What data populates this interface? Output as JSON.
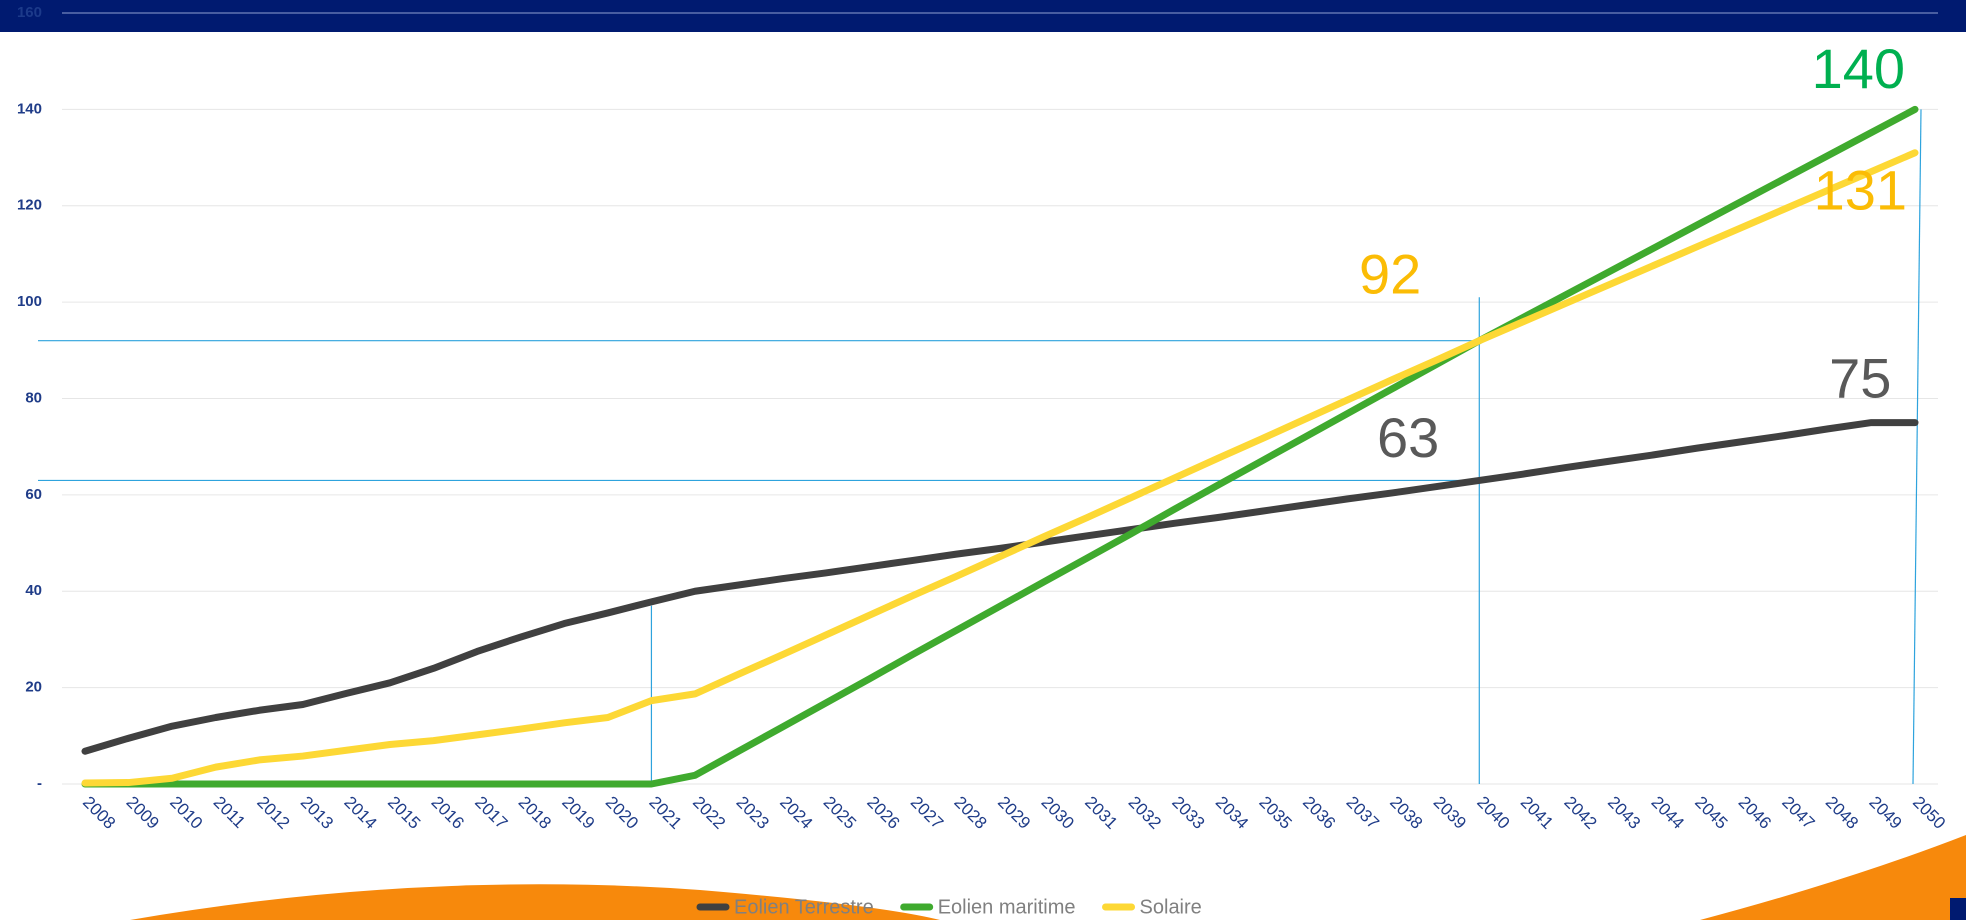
{
  "chart_data": {
    "type": "line",
    "x": [
      "2008",
      "2009",
      "2010",
      "2011",
      "2012",
      "2013",
      "2014",
      "2015",
      "2016",
      "2017",
      "2018",
      "2019",
      "2020",
      "2021",
      "2022",
      "2023",
      "2024",
      "2025",
      "2026",
      "2027",
      "2028",
      "2029",
      "2030",
      "2031",
      "2032",
      "2033",
      "2034",
      "2035",
      "2036",
      "2037",
      "2038",
      "2039",
      "2040",
      "2041",
      "2042",
      "2043",
      "2044",
      "2045",
      "2046",
      "2047",
      "2048",
      "2049",
      "2050"
    ],
    "series": [
      {
        "name": "Eolien Terrestre",
        "color": "#404040",
        "values": [
          6.8,
          9.5,
          12,
          13.8,
          15.3,
          16.5,
          18.8,
          21,
          24,
          27.5,
          30.5,
          33.3,
          35.5,
          37.8,
          40,
          41.3,
          42.6,
          43.8,
          45.1,
          46.4,
          47.7,
          48.9,
          50.2,
          51.5,
          52.8,
          54.1,
          55.3,
          56.6,
          57.9,
          59.2,
          60.4,
          61.7,
          63,
          64.3,
          65.7,
          67,
          68.3,
          69.7,
          71,
          72.3,
          73.7,
          75,
          75
        ]
      },
      {
        "name": "Eolien maritime",
        "color": "#3faa2e",
        "values": [
          0,
          0,
          0,
          0,
          0,
          0,
          0,
          0,
          0,
          0,
          0,
          0,
          0,
          0,
          1.8,
          6.8,
          11.8,
          16.8,
          21.8,
          26.9,
          31.9,
          36.9,
          41.9,
          46.9,
          51.9,
          57,
          62,
          67,
          72,
          77,
          82,
          87,
          92,
          96.8,
          101.6,
          106.4,
          111.2,
          116,
          120.8,
          125.6,
          130.4,
          135.2,
          140
        ]
      },
      {
        "name": "Solaire",
        "color": "#fdd835",
        "values": [
          0.2,
          0.3,
          1.2,
          3.5,
          5,
          5.8,
          7,
          8.2,
          9,
          10.2,
          11.4,
          12.7,
          13.8,
          17.3,
          18.7,
          22.8,
          26.8,
          30.9,
          35,
          39.1,
          43.1,
          47.2,
          51.3,
          55.3,
          59.4,
          63.5,
          67.6,
          71.6,
          75.7,
          79.8,
          83.9,
          87.9,
          92,
          95.9,
          99.8,
          103.7,
          107.6,
          111.5,
          115.4,
          119.3,
          123.2,
          127.1,
          131
        ]
      }
    ],
    "ylim": [
      0,
      160
    ],
    "yticks": [
      {
        "value": 0,
        "label": "-"
      },
      20,
      40,
      60,
      80,
      100,
      120,
      140,
      160
    ],
    "grid": true,
    "legend": "bottom",
    "annotations": [
      {
        "value": 140,
        "category": "2050",
        "series": "Eolien maritime",
        "color": "#00b050"
      },
      {
        "value": 131,
        "category": "2050",
        "series": "Solaire",
        "color": "#fbbc05"
      },
      {
        "value": 92,
        "category": "2040",
        "series": "Solaire",
        "color": "#fbbc05"
      },
      {
        "value": 75,
        "category": "2049",
        "series": "Eolien Terrestre",
        "color": "#595959"
      },
      {
        "value": 63,
        "category": "2040",
        "series": "Eolien Terrestre",
        "color": "#595959"
      }
    ]
  }
}
